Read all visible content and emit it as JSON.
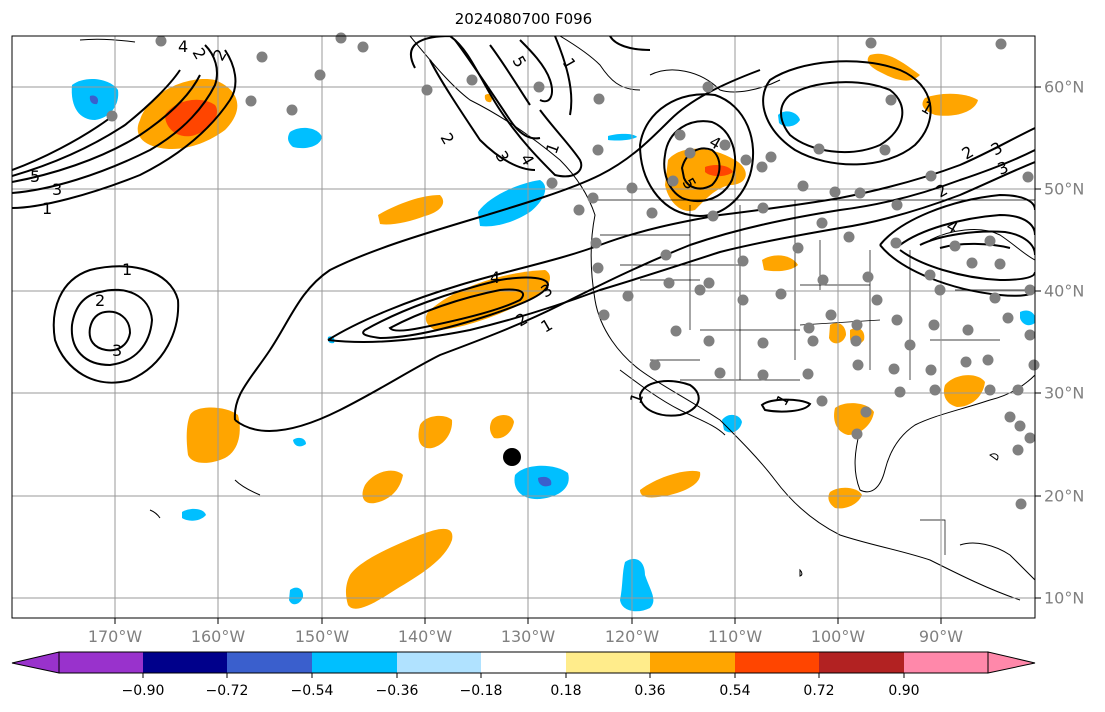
{
  "title": "2024080700 F096",
  "lon_labels": [
    "170°W",
    "160°W",
    "150°W",
    "140°W",
    "130°W",
    "120°W",
    "110°W",
    "100°W",
    "90°W"
  ],
  "lat_labels": [
    "60°N",
    "50°N",
    "40°N",
    "30°N",
    "20°N",
    "10°N"
  ],
  "colorbar": {
    "ticks": [
      "−0.90",
      "−0.72",
      "−0.54",
      "−0.36",
      "−0.18",
      "0.18",
      "0.36",
      "0.54",
      "0.72",
      "0.90"
    ],
    "colors": [
      "#9932cc",
      "#00008b",
      "#3a5fcd",
      "#00bfff",
      "#b0e2ff",
      "#ffffff",
      "#ffec8b",
      "#ffa500",
      "#ff4500",
      "#b22222",
      "#ff88aa"
    ]
  },
  "contour_labels": [
    "1",
    "2",
    "3",
    "4",
    "5",
    "1",
    "2",
    "3",
    "1",
    "2",
    "3",
    "4",
    "1",
    "2",
    "3",
    "4",
    "5",
    "1",
    "2",
    "3",
    "4",
    "5",
    "1",
    "1",
    "2",
    "3",
    "4",
    "2",
    "1"
  ],
  "colors": {
    "positive_mid": "#ffa500",
    "positive_high": "#ff4500",
    "negative_mid": "#00bfff",
    "negative_strong": "#3a5fcd",
    "grid": "#999999",
    "stations": "#808080"
  }
}
